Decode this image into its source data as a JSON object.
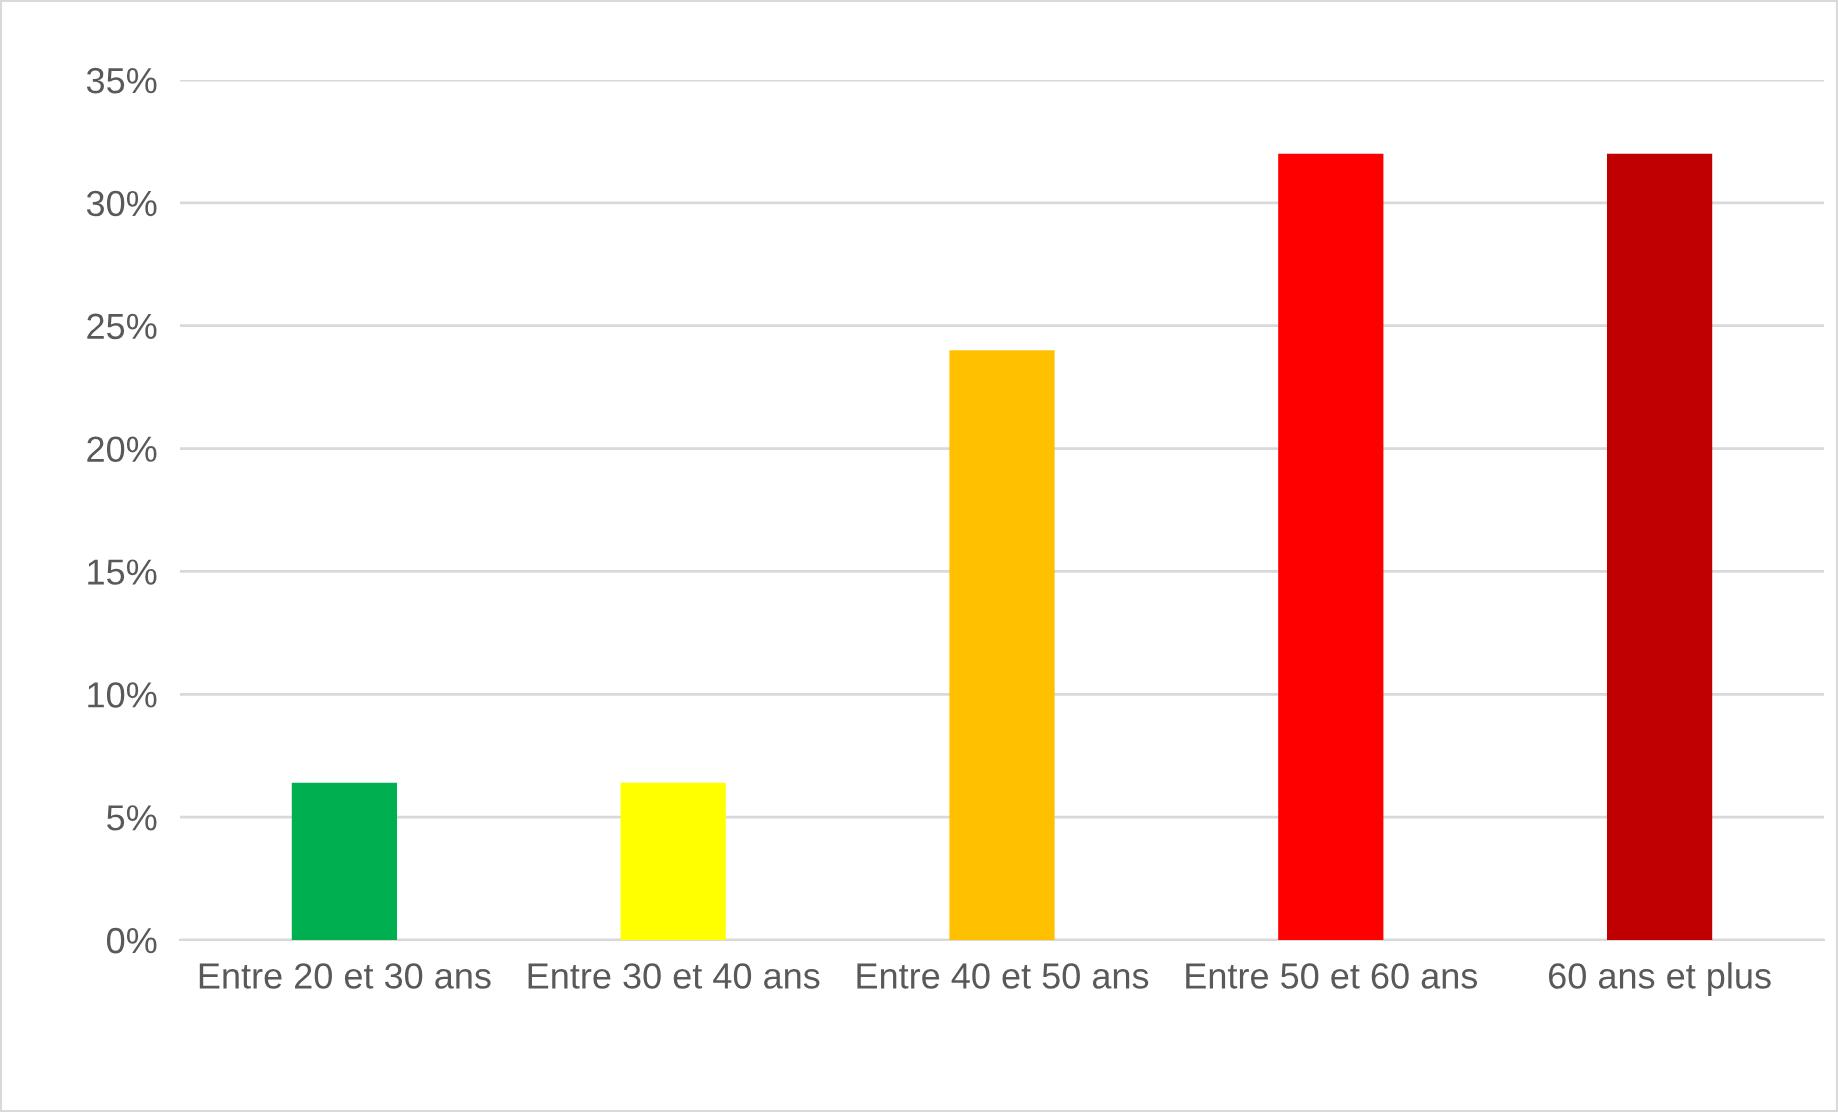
{
  "chart_data": {
    "type": "bar",
    "categories": [
      "Entre 20 et 30 ans",
      "Entre 30 et 40 ans",
      "Entre 40 et 50 ans",
      "Entre 50 et 60 ans",
      "60 ans et plus"
    ],
    "values": [
      6.4,
      6.4,
      24,
      32,
      32
    ],
    "colors": [
      "#00b050",
      "#ffff00",
      "#ffc000",
      "#ff0000",
      "#c00000"
    ],
    "ylim": [
      0,
      35
    ],
    "yticks": [
      {
        "value": 0,
        "label": "0%"
      },
      {
        "value": 5,
        "label": "5%"
      },
      {
        "value": 10,
        "label": "10%"
      },
      {
        "value": 15,
        "label": "15%"
      },
      {
        "value": 20,
        "label": "20%"
      },
      {
        "value": 25,
        "label": "25%"
      },
      {
        "value": 30,
        "label": "30%"
      },
      {
        "value": 35,
        "label": "35%"
      }
    ],
    "grid": "y",
    "legend": false
  }
}
